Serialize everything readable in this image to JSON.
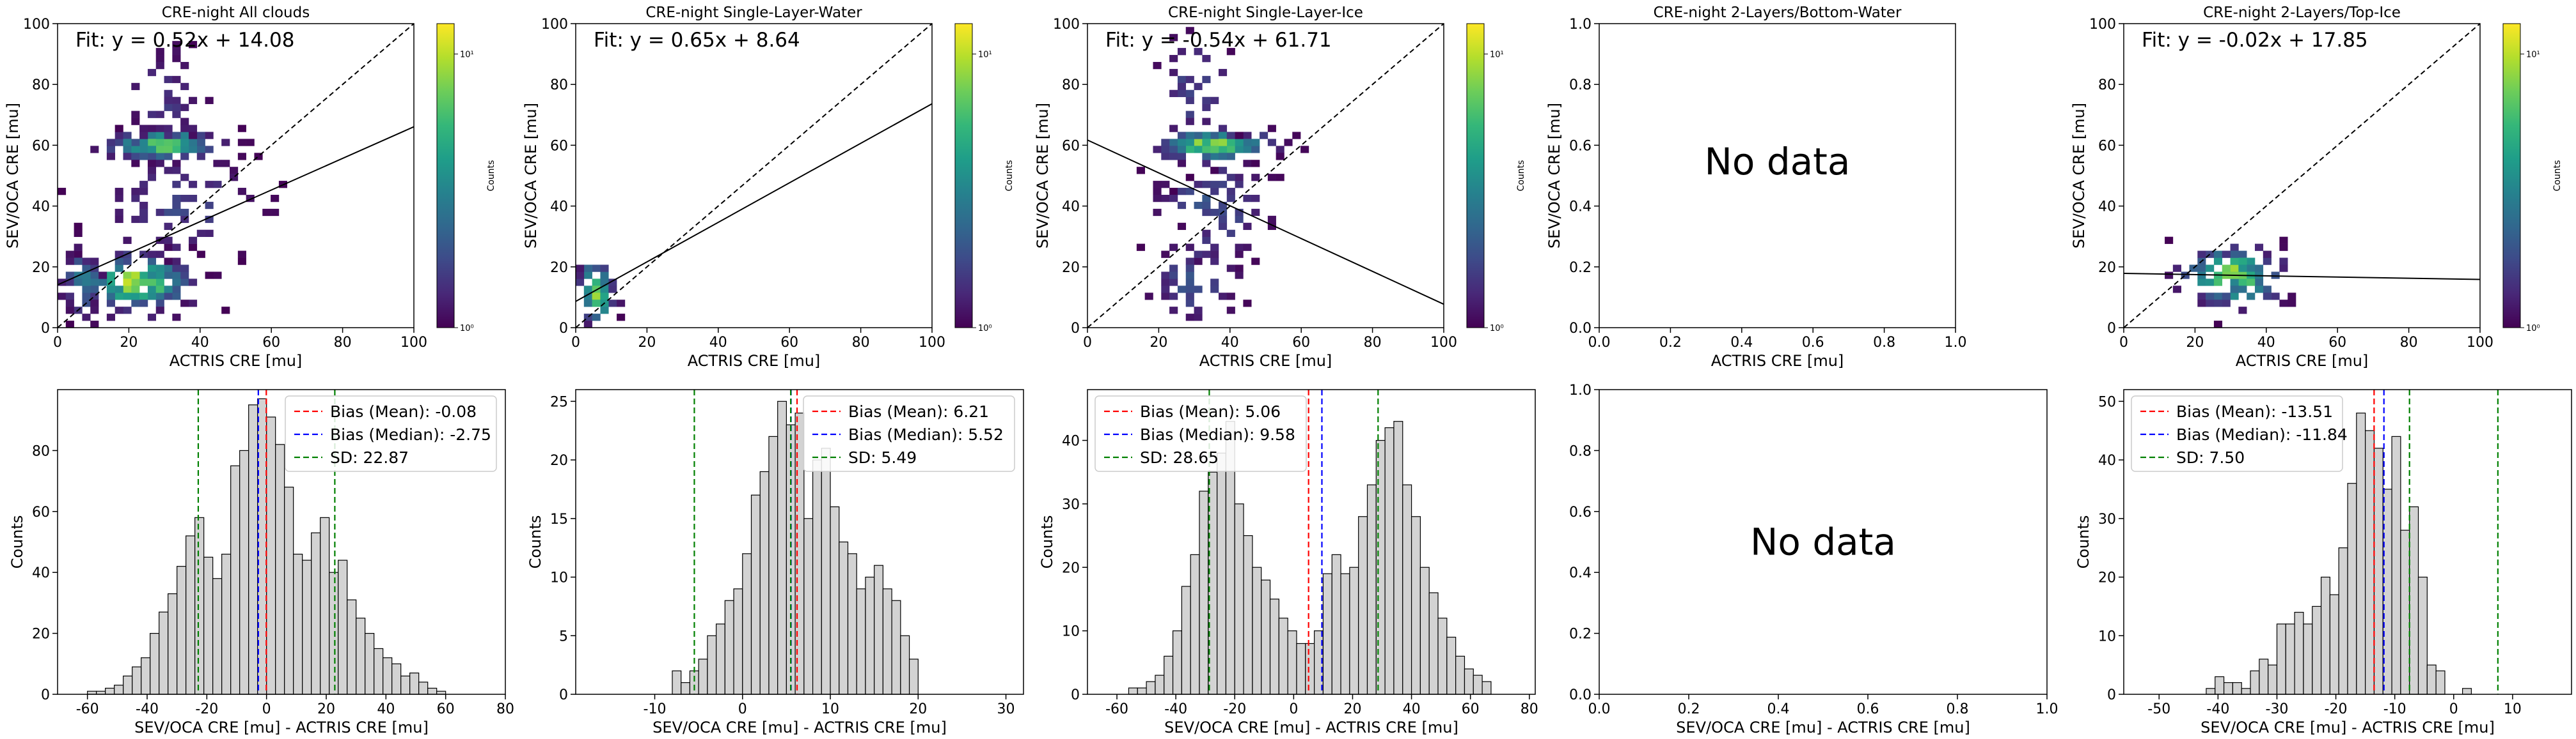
{
  "chart_data": [
    {
      "type": "heatmap",
      "title": "CRE-night All clouds",
      "xlabel": "ACTRIS CRE [mu]",
      "ylabel": "SEV/OCA CRE [mu]",
      "xlim": [
        0,
        100
      ],
      "ylim": [
        0,
        100
      ],
      "xticks": [
        "0",
        "20",
        "40",
        "60",
        "80",
        "100"
      ],
      "yticks": [
        "0",
        "20",
        "40",
        "60",
        "80",
        "100"
      ],
      "fit_label": "Fit: y = 0.52x + 14.08",
      "fit": {
        "slope": 0.52,
        "intercept": 14.08
      },
      "one_to_one_line": true,
      "colorbar": {
        "label": "Counts",
        "ticks": [
          "10⁰",
          "10¹"
        ],
        "scale": "log"
      },
      "clusters": [
        {
          "x": 30,
          "y": 60,
          "sx": 9,
          "sy": 2.5,
          "n": 120,
          "peak": 0.8
        },
        {
          "x": 22,
          "y": 15,
          "sx": 9,
          "sy": 5,
          "n": 140,
          "peak": 0.95
        },
        {
          "x": 30,
          "y": 75,
          "sx": 6,
          "sy": 10,
          "n": 40,
          "peak": 0.2
        },
        {
          "x": 35,
          "y": 40,
          "sx": 12,
          "sy": 10,
          "n": 70,
          "peak": 0.25
        },
        {
          "x": 7,
          "y": 15,
          "sx": 3,
          "sy": 6,
          "n": 35,
          "peak": 0.5
        }
      ]
    },
    {
      "type": "heatmap",
      "title": "CRE-night Single-Layer-Water",
      "xlabel": "ACTRIS CRE [mu]",
      "ylabel": "SEV/OCA CRE [mu]",
      "xlim": [
        0,
        100
      ],
      "ylim": [
        0,
        100
      ],
      "xticks": [
        "0",
        "20",
        "40",
        "60",
        "80",
        "100"
      ],
      "yticks": [
        "0",
        "20",
        "40",
        "60",
        "80",
        "100"
      ],
      "fit_label": "Fit: y = 0.65x + 8.64",
      "fit": {
        "slope": 0.65,
        "intercept": 8.64
      },
      "one_to_one_line": true,
      "colorbar": {
        "label": "Counts",
        "ticks": [
          "10⁰",
          "10¹"
        ],
        "scale": "log"
      },
      "clusters": [
        {
          "x": 6,
          "y": 11,
          "sx": 2.5,
          "sy": 6,
          "n": 45,
          "peak": 0.9
        }
      ]
    },
    {
      "type": "heatmap",
      "title": "CRE-night Single-Layer-Ice",
      "xlabel": "ACTRIS CRE [mu]",
      "ylabel": "SEV/OCA CRE [mu]",
      "xlim": [
        0,
        100
      ],
      "ylim": [
        0,
        100
      ],
      "xticks": [
        "0",
        "20",
        "40",
        "60",
        "80",
        "100"
      ],
      "yticks": [
        "0",
        "20",
        "40",
        "60",
        "80",
        "100"
      ],
      "fit_label": "Fit: y = -0.54x + 61.71",
      "fit": {
        "slope": -0.54,
        "intercept": 61.71
      },
      "one_to_one_line": true,
      "colorbar": {
        "label": "Counts",
        "ticks": [
          "10⁰",
          "10¹"
        ],
        "scale": "log"
      },
      "clusters": [
        {
          "x": 35,
          "y": 60,
          "sx": 9,
          "sy": 2.5,
          "n": 120,
          "peak": 0.9
        },
        {
          "x": 30,
          "y": 78,
          "sx": 6,
          "sy": 10,
          "n": 45,
          "peak": 0.25
        },
        {
          "x": 35,
          "y": 40,
          "sx": 9,
          "sy": 10,
          "n": 70,
          "peak": 0.3
        },
        {
          "x": 30,
          "y": 15,
          "sx": 7,
          "sy": 8,
          "n": 45,
          "peak": 0.3
        }
      ]
    },
    {
      "type": "heatmap",
      "title": "CRE-night 2-Layers/Bottom-Water",
      "xlabel": "ACTRIS CRE [mu]",
      "ylabel": "SEV/OCA CRE [mu]",
      "xlim": [
        0,
        1
      ],
      "ylim": [
        0,
        1
      ],
      "xticks": [
        "0.0",
        "0.2",
        "0.4",
        "0.6",
        "0.8",
        "1.0"
      ],
      "yticks": [
        "0.0",
        "0.2",
        "0.4",
        "0.6",
        "0.8",
        "1.0"
      ],
      "no_data_text": "No data"
    },
    {
      "type": "heatmap",
      "title": "CRE-night 2-Layers/Top-Ice",
      "xlabel": "ACTRIS CRE [mu]",
      "ylabel": "SEV/OCA CRE [mu]",
      "xlim": [
        0,
        100
      ],
      "ylim": [
        0,
        100
      ],
      "xticks": [
        "0",
        "20",
        "40",
        "60",
        "80",
        "100"
      ],
      "yticks": [
        "0",
        "20",
        "40",
        "60",
        "80",
        "100"
      ],
      "fit_label": "Fit: y = -0.02x + 17.85",
      "fit": {
        "slope": -0.02,
        "intercept": 17.85
      },
      "one_to_one_line": true,
      "colorbar": {
        "label": "Counts",
        "ticks": [
          "10⁰",
          "10¹"
        ],
        "scale": "log"
      },
      "clusters": [
        {
          "x": 31,
          "y": 17,
          "sx": 8,
          "sy": 5,
          "n": 110,
          "peak": 0.95
        }
      ]
    },
    {
      "type": "bar",
      "subtype": "histogram",
      "xlabel": "SEV/OCA CRE [mu] - ACTRIS CRE [mu]",
      "ylabel": "Counts",
      "xlim": [
        -70,
        80
      ],
      "ylim": [
        0,
        100
      ],
      "xticks": [
        -60,
        -40,
        -20,
        0,
        20,
        40,
        60,
        80
      ],
      "yticks": [
        0,
        20,
        40,
        60,
        80
      ],
      "bins": {
        "start": -60,
        "width": 3,
        "counts": [
          1,
          1,
          2,
          3,
          6,
          9,
          12,
          20,
          27,
          33,
          42,
          52,
          58,
          45,
          38,
          46,
          75,
          80,
          95,
          97,
          91,
          82,
          68,
          46,
          44,
          53,
          58,
          40,
          44,
          31,
          25,
          20,
          15,
          12,
          10,
          6,
          7,
          4,
          2,
          1
        ]
      },
      "lines": [
        {
          "name": "Bias (Mean): -0.08",
          "value": -0.08,
          "color": "#ff0000"
        },
        {
          "name": "Bias (Median): -2.75",
          "value": -2.75,
          "color": "#0000ff"
        },
        {
          "name": "SD: 22.87",
          "value": 22.87,
          "color": "#008000",
          "symmetric": true
        }
      ]
    },
    {
      "type": "bar",
      "subtype": "histogram",
      "xlabel": "SEV/OCA CRE [mu] - ACTRIS CRE [mu]",
      "ylabel": "Counts",
      "xlim": [
        -19,
        32
      ],
      "ylim": [
        0,
        26
      ],
      "xticks": [
        -10,
        0,
        10,
        20,
        30
      ],
      "yticks": [
        0,
        5,
        10,
        15,
        20,
        25
      ],
      "bins": {
        "start": -8,
        "width": 1,
        "counts": [
          2,
          1,
          2,
          3,
          5,
          6,
          8,
          9,
          12,
          17,
          19,
          22,
          25,
          23,
          24,
          15,
          20,
          21,
          16,
          13,
          12,
          9,
          10,
          11,
          9,
          8,
          5,
          3
        ]
      },
      "lines": [
        {
          "name": "Bias (Mean): 6.21",
          "value": 6.21,
          "color": "#ff0000"
        },
        {
          "name": "Bias (Median): 5.52",
          "value": 5.52,
          "color": "#0000ff"
        },
        {
          "name": "SD: 5.49",
          "value": 5.49,
          "color": "#008000",
          "symmetric": true
        }
      ]
    },
    {
      "type": "bar",
      "subtype": "histogram",
      "xlabel": "SEV/OCA CRE [mu] - ACTRIS CRE [mu]",
      "ylabel": "Counts",
      "xlim": [
        -70,
        82
      ],
      "ylim": [
        0,
        48
      ],
      "xticks": [
        -60,
        -40,
        -20,
        0,
        20,
        40,
        60,
        80
      ],
      "yticks": [
        0,
        10,
        20,
        30,
        40
      ],
      "bins": {
        "start": -56,
        "width": 3,
        "counts": [
          1,
          1,
          2,
          3,
          6,
          10,
          17,
          22,
          32,
          35,
          38,
          43,
          30,
          25,
          20,
          18,
          15,
          12,
          10,
          8,
          8,
          10,
          19,
          22,
          19,
          20,
          28,
          33,
          40,
          42,
          43,
          33,
          28,
          20,
          16,
          12,
          9,
          6,
          4,
          3,
          2
        ]
      },
      "lines": [
        {
          "name": "Bias (Mean): 5.06",
          "value": 5.06,
          "color": "#ff0000"
        },
        {
          "name": "Bias (Median): 9.58",
          "value": 9.58,
          "color": "#0000ff"
        },
        {
          "name": "SD: 28.65",
          "value": 28.65,
          "color": "#008000",
          "symmetric": true
        }
      ]
    },
    {
      "type": "bar",
      "subtype": "histogram",
      "xlabel": "SEV/OCA CRE [mu] - ACTRIS CRE [mu]",
      "ylabel": "",
      "xlim": [
        0,
        1
      ],
      "ylim": [
        0,
        1
      ],
      "xticks": [
        "0.0",
        "0.2",
        "0.4",
        "0.6",
        "0.8",
        "1.0"
      ],
      "yticks": [
        "0.0",
        "0.2",
        "0.4",
        "0.6",
        "0.8",
        "1.0"
      ],
      "no_data_text": "No data"
    },
    {
      "type": "bar",
      "subtype": "histogram",
      "xlabel": "SEV/OCA CRE [mu] - ACTRIS CRE [mu]",
      "ylabel": "Counts",
      "xlim": [
        -56,
        20
      ],
      "ylim": [
        0,
        52
      ],
      "xticks": [
        -50,
        -40,
        -30,
        -20,
        -10,
        0,
        10
      ],
      "yticks": [
        0,
        10,
        20,
        30,
        40,
        50
      ],
      "bins": {
        "start": -42,
        "width": 1.5,
        "counts": [
          1,
          3,
          2,
          2,
          1,
          4,
          6,
          5,
          12,
          12,
          14,
          12,
          15,
          20,
          17,
          25,
          36,
          48,
          45,
          42,
          35,
          44,
          28,
          32,
          20,
          5,
          4,
          0,
          0,
          1
        ]
      },
      "lines": [
        {
          "name": "Bias (Mean): -13.51",
          "value": -13.51,
          "color": "#ff0000"
        },
        {
          "name": "Bias (Median): -11.84",
          "value": -11.84,
          "color": "#0000ff"
        },
        {
          "name": "SD: 7.50",
          "value": 7.5,
          "color": "#008000",
          "symmetric": true
        }
      ]
    }
  ]
}
